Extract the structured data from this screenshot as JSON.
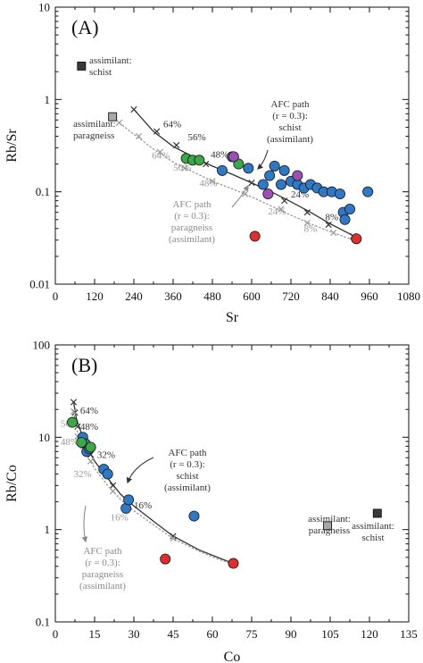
{
  "colors": {
    "blue": "#2e78c6",
    "green": "#39a845",
    "purple": "#9d4fb6",
    "red": "#e32d2d",
    "schist_path": "#333333",
    "paragneiss_path": "#9a9a9a",
    "schist_marker": "#3a3a3a",
    "paragneiss_marker": "#a8a8a8"
  },
  "chart_data": [
    {
      "type": "scatter",
      "panel_label": "(A)",
      "xlabel": "Sr",
      "ylabel": "Rb/Sr",
      "xlim": [
        0,
        1080
      ],
      "ylim": [
        0.01,
        10
      ],
      "yscale": "log",
      "x_ticks": [
        "0",
        "120",
        "240",
        "360",
        "480",
        "600",
        "720",
        "840",
        "960",
        "1080"
      ],
      "x_tick_values": [
        0,
        120,
        240,
        360,
        480,
        600,
        720,
        840,
        960,
        1080
      ],
      "y_ticks": [
        "0.01",
        "0.1",
        "1",
        "10"
      ],
      "y_tick_values": [
        0.01,
        0.1,
        1,
        10
      ],
      "series": [
        {
          "color": "blue",
          "points": [
            [
              510,
              0.17
            ],
            [
              540,
              0.24
            ],
            [
              590,
              0.18
            ],
            [
              635,
              0.12
            ],
            [
              655,
              0.15
            ],
            [
              670,
              0.19
            ],
            [
              690,
              0.12
            ],
            [
              700,
              0.17
            ],
            [
              720,
              0.13
            ],
            [
              740,
              0.12
            ],
            [
              760,
              0.11
            ],
            [
              780,
              0.12
            ],
            [
              800,
              0.11
            ],
            [
              820,
              0.1
            ],
            [
              845,
              0.1
            ],
            [
              870,
              0.095
            ],
            [
              880,
              0.06
            ],
            [
              885,
              0.05
            ],
            [
              900,
              0.065
            ],
            [
              955,
              0.1
            ]
          ]
        },
        {
          "color": "green",
          "points": [
            [
              400,
              0.23
            ],
            [
              420,
              0.22
            ],
            [
              440,
              0.22
            ],
            [
              560,
              0.2
            ]
          ]
        },
        {
          "color": "purple",
          "points": [
            [
              545,
              0.24
            ],
            [
              650,
              0.095
            ],
            [
              740,
              0.15
            ]
          ]
        },
        {
          "color": "red",
          "points": [
            [
              610,
              0.033
            ],
            [
              920,
              0.031
            ]
          ]
        }
      ],
      "assimilants": [
        {
          "label": "assimilant: schist",
          "lines": [
            "assimilant:",
            "schist"
          ],
          "x": 80,
          "y": 2.3,
          "color": "schist_marker"
        },
        {
          "label": "assimilant: paragneiss",
          "lines": [
            "assimilant:",
            "paragneiss"
          ],
          "x": 175,
          "y": 0.65,
          "color": "paragneiss_marker"
        }
      ],
      "afc_paths": [
        {
          "color": "schist_path",
          "lines": [
            "AFC path",
            "(r = 0.3):",
            "schist",
            "(assimilant)"
          ],
          "points": [
            [
              240,
              0.78
            ],
            [
              300,
              0.45
            ],
            [
              360,
              0.31
            ],
            [
              420,
              0.24
            ],
            [
              480,
              0.19
            ],
            [
              540,
              0.155
            ],
            [
              600,
              0.125
            ],
            [
              660,
              0.1
            ],
            [
              720,
              0.078
            ],
            [
              780,
              0.06
            ],
            [
              840,
              0.045
            ],
            [
              900,
              0.035
            ],
            [
              925,
              0.031
            ]
          ],
          "markers": [
            [
              240,
              0.78
            ],
            [
              310,
              0.45
            ],
            [
              370,
              0.32
            ],
            [
              460,
              0.2
            ],
            [
              600,
              0.125
            ],
            [
              700,
              0.08
            ],
            [
              770,
              0.06
            ],
            [
              835,
              0.044
            ],
            [
              910,
              0.033
            ]
          ],
          "pct_labels": [
            {
              "text": "64%",
              "x": 330,
              "y": 0.5
            },
            {
              "text": "56%",
              "x": 405,
              "y": 0.36
            },
            {
              "text": "48%",
              "x": 475,
              "y": 0.235
            },
            {
              "text": "24%",
              "x": 720,
              "y": 0.087
            },
            {
              "text": "8%",
              "x": 825,
              "y": 0.049
            }
          ]
        },
        {
          "color": "paragneiss_path",
          "lines": [
            "AFC path",
            "(r = 0.3):",
            "paragneiss",
            "(assimilant)"
          ],
          "points": [
            [
              195,
              0.56
            ],
            [
              240,
              0.42
            ],
            [
              300,
              0.29
            ],
            [
              360,
              0.21
            ],
            [
              420,
              0.165
            ],
            [
              480,
              0.13
            ],
            [
              540,
              0.108
            ],
            [
              600,
              0.088
            ],
            [
              660,
              0.07
            ],
            [
              720,
              0.056
            ],
            [
              780,
              0.045
            ],
            [
              840,
              0.037
            ],
            [
              900,
              0.031
            ]
          ],
          "markers": [
            [
              195,
              0.56
            ],
            [
              255,
              0.4
            ],
            [
              320,
              0.27
            ],
            [
              395,
              0.18
            ],
            [
              480,
              0.13
            ],
            [
              580,
              0.095
            ],
            [
              690,
              0.065
            ],
            [
              770,
              0.046
            ],
            [
              850,
              0.036
            ]
          ],
          "pct_labels": [
            {
              "text": "64%",
              "x": 295,
              "y": 0.23
            },
            {
              "text": "56%",
              "x": 360,
              "y": 0.17
            },
            {
              "text": "48%",
              "x": 440,
              "y": 0.115
            },
            {
              "text": "24%",
              "x": 650,
              "y": 0.057
            },
            {
              "text": "8%",
              "x": 760,
              "y": 0.037
            }
          ]
        }
      ]
    },
    {
      "type": "scatter",
      "panel_label": "(B)",
      "xlabel": "Co",
      "ylabel": "Rb/Co",
      "xlim": [
        0,
        135
      ],
      "ylim": [
        0.1,
        100
      ],
      "yscale": "log",
      "x_ticks": [
        "0",
        "15",
        "30",
        "45",
        "60",
        "75",
        "90",
        "105",
        "120",
        "135"
      ],
      "x_tick_values": [
        0,
        15,
        30,
        45,
        60,
        75,
        90,
        105,
        120,
        135
      ],
      "y_ticks": [
        "0.1",
        "1",
        "10",
        "100"
      ],
      "y_tick_values": [
        0.1,
        1,
        10,
        100
      ],
      "series": [
        {
          "color": "blue",
          "points": [
            [
              10.5,
              10
            ],
            [
              11.5,
              8.5
            ],
            [
              12,
              7
            ],
            [
              13,
              7.5
            ],
            [
              18.5,
              4.5
            ],
            [
              20,
              4
            ],
            [
              27,
              1.7
            ],
            [
              28,
              2.1
            ],
            [
              53,
              1.4
            ]
          ]
        },
        {
          "color": "green",
          "points": [
            [
              6.5,
              14.5
            ],
            [
              10,
              8.8
            ],
            [
              13.5,
              7.8
            ]
          ]
        },
        {
          "color": "red",
          "points": [
            [
              42,
              0.48
            ],
            [
              68,
              0.43
            ]
          ]
        }
      ],
      "assimilants": [
        {
          "label": "assimilant: paragneiss",
          "lines": [
            "assimilant:",
            "paragneiss"
          ],
          "x": 104,
          "y": 1.1,
          "color": "paragneiss_marker"
        },
        {
          "label": "assimilant: schist",
          "lines": [
            "assimilant:",
            "schist"
          ],
          "x": 123,
          "y": 1.5,
          "color": "schist_marker"
        }
      ],
      "afc_paths": [
        {
          "color": "schist_path",
          "lines": [
            "AFC path",
            "(r = 0.3):",
            "schist",
            "(assimilant)"
          ],
          "points": [
            [
              7,
              24
            ],
            [
              8,
              16
            ],
            [
              10,
              11
            ],
            [
              12,
              8
            ],
            [
              15,
              5.5
            ],
            [
              20,
              3.6
            ],
            [
              25,
              2.4
            ],
            [
              30,
              1.8
            ],
            [
              38,
              1.2
            ],
            [
              45,
              0.85
            ],
            [
              55,
              0.6
            ],
            [
              62,
              0.5
            ],
            [
              68,
              0.43
            ]
          ],
          "markers": [
            [
              7,
              24
            ],
            [
              7.5,
              18.5
            ],
            [
              8.5,
              13
            ],
            [
              10.5,
              10
            ],
            [
              13.5,
              6.5
            ],
            [
              22,
              3
            ],
            [
              45,
              0.85
            ]
          ],
          "pct_labels": [
            {
              "text": "64%",
              "x": 9.5,
              "y": 18
            },
            {
              "text": "48%",
              "x": 9.5,
              "y": 12
            },
            {
              "text": "32%",
              "x": 16,
              "y": 6
            },
            {
              "text": "16%",
              "x": 30,
              "y": 1.7
            }
          ]
        },
        {
          "color": "paragneiss_path",
          "lines": [
            "AFC path",
            "(r = 0.3):",
            "paragneiss",
            "(assimilant)"
          ],
          "points": [
            [
              7,
              19
            ],
            [
              8,
              12.5
            ],
            [
              10,
              8.6
            ],
            [
              12,
              6.4
            ],
            [
              15,
              4.6
            ],
            [
              20,
              3.0
            ],
            [
              25,
              2.1
            ],
            [
              30,
              1.6
            ],
            [
              38,
              1.1
            ],
            [
              45,
              0.8
            ],
            [
              55,
              0.58
            ],
            [
              62,
              0.48
            ],
            [
              68,
              0.42
            ]
          ],
          "markers": [
            [
              7,
              19
            ],
            [
              7.5,
              14.5
            ],
            [
              8.5,
              10.2
            ],
            [
              10.5,
              8
            ],
            [
              13.5,
              5.5
            ],
            [
              22,
              2.6
            ],
            [
              45,
              0.8
            ]
          ],
          "pct_labels": [
            {
              "text": "56%",
              "x": 2,
              "y": 13
            },
            {
              "text": "48%",
              "x": 2,
              "y": 8.2
            },
            {
              "text": "32%",
              "x": 7,
              "y": 3.7
            },
            {
              "text": "16%",
              "x": 21,
              "y": 1.25
            }
          ]
        }
      ]
    }
  ]
}
